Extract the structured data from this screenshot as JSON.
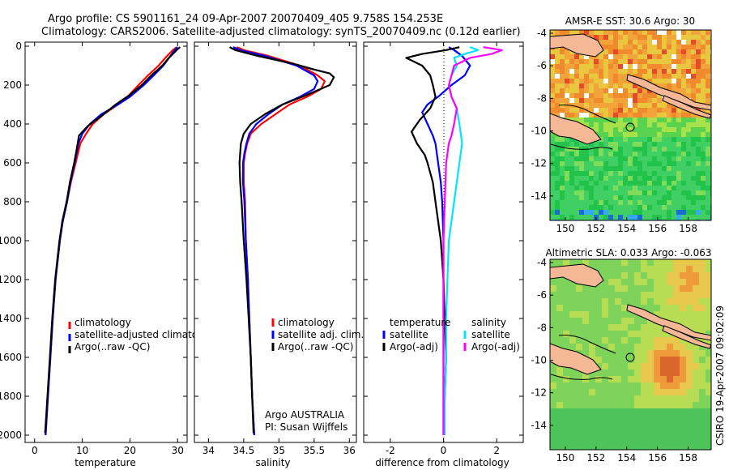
{
  "header": {
    "line1": "Argo profile: CS 5901161_24 09-Apr-2007 20070409_405 9.758S 154.253E",
    "line2": "Climatology: CARS2006. Satellite-adjusted climatology: synTS_20070409.nc (0.12d earlier)"
  },
  "footer": {
    "institute": "Argo AUSTRALIA",
    "pi": "PI: Susan Wijffels",
    "stamp": "CSIRO 19-Apr-2007 09:02:09"
  },
  "colors": {
    "climatology": "#ff0000",
    "satellite": "#0000ff",
    "argo": "#000000",
    "satellite_salinity": "#00e5ff",
    "argo_salinity": "#ff00ff",
    "land": "#f4b896"
  },
  "chart_data": [
    {
      "type": "line",
      "xlabel": "temperature",
      "ylabel": "",
      "xlim": [
        -2,
        32
      ],
      "ylim": [
        2000,
        0
      ],
      "x_ticks": [
        0,
        10,
        20,
        30
      ],
      "y_ticks": [
        0,
        200,
        400,
        600,
        800,
        1000,
        1200,
        1400,
        1600,
        1800,
        2000
      ],
      "legend": [
        "climatology",
        "satellite-adjusted climatology",
        "Argo(..raw -QC)"
      ],
      "series": [
        {
          "name": "climatology",
          "color": "#ff0000",
          "points": [
            [
              29.8,
              5
            ],
            [
              29.0,
              20
            ],
            [
              27.8,
              50
            ],
            [
              26.0,
              100
            ],
            [
              23.8,
              150
            ],
            [
              21.8,
              200
            ],
            [
              19.5,
              260
            ],
            [
              17.5,
              300
            ],
            [
              14.5,
              350
            ],
            [
              12.2,
              400
            ],
            [
              10.8,
              450
            ],
            [
              9.6,
              500
            ],
            [
              8.6,
              600
            ],
            [
              7.6,
              700
            ],
            [
              6.8,
              800
            ],
            [
              5.9,
              900
            ],
            [
              5.3,
              1000
            ],
            [
              4.4,
              1200
            ],
            [
              3.8,
              1400
            ],
            [
              3.3,
              1600
            ],
            [
              2.8,
              1800
            ],
            [
              2.3,
              2000
            ]
          ]
        },
        {
          "name": "satellite-adjusted climatology",
          "color": "#0000ff",
          "points": [
            [
              30.0,
              5
            ],
            [
              29.4,
              20
            ],
            [
              28.5,
              50
            ],
            [
              27.0,
              100
            ],
            [
              25.0,
              150
            ],
            [
              22.9,
              200
            ],
            [
              20.0,
              260
            ],
            [
              17.5,
              300
            ],
            [
              14.0,
              350
            ],
            [
              11.6,
              400
            ],
            [
              10.0,
              450
            ],
            [
              9.2,
              500
            ],
            [
              8.4,
              600
            ],
            [
              7.5,
              700
            ],
            [
              6.8,
              800
            ],
            [
              5.9,
              900
            ],
            [
              5.3,
              1000
            ],
            [
              4.4,
              1200
            ],
            [
              3.8,
              1400
            ],
            [
              3.3,
              1600
            ],
            [
              2.8,
              1800
            ],
            [
              2.3,
              2000
            ]
          ]
        },
        {
          "name": "Argo(..raw -QC)",
          "color": "#000000",
          "points": [
            [
              30.5,
              5
            ],
            [
              29.8,
              20
            ],
            [
              28.2,
              60
            ],
            [
              26.8,
              100
            ],
            [
              24.5,
              150
            ],
            [
              22.5,
              200
            ],
            [
              20.0,
              250
            ],
            [
              17.0,
              300
            ],
            [
              14.5,
              350
            ],
            [
              11.2,
              410
            ],
            [
              9.3,
              460
            ],
            [
              8.9,
              520
            ],
            [
              8.3,
              600
            ],
            [
              7.4,
              700
            ],
            [
              6.7,
              800
            ],
            [
              5.8,
              900
            ],
            [
              5.2,
              1000
            ],
            [
              4.3,
              1200
            ],
            [
              3.7,
              1400
            ],
            [
              3.2,
              1600
            ],
            [
              2.7,
              1800
            ],
            [
              2.2,
              1990
            ]
          ]
        }
      ]
    },
    {
      "type": "line",
      "xlabel": "salinity",
      "ylabel": "",
      "xlim": [
        33.8,
        36.1
      ],
      "ylim": [
        2000,
        0
      ],
      "x_ticks": [
        34,
        34.5,
        35,
        35.5,
        36
      ],
      "legend": [
        "climatology",
        "satellite adj. clim.",
        "Argo(..raw -QC)"
      ],
      "series": [
        {
          "name": "climatology",
          "color": "#ff0000",
          "points": [
            [
              34.4,
              5
            ],
            [
              34.5,
              20
            ],
            [
              34.85,
              50
            ],
            [
              35.3,
              100
            ],
            [
              35.55,
              150
            ],
            [
              35.65,
              180
            ],
            [
              35.6,
              220
            ],
            [
              35.4,
              260
            ],
            [
              35.15,
              300
            ],
            [
              34.95,
              350
            ],
            [
              34.75,
              400
            ],
            [
              34.6,
              450
            ],
            [
              34.55,
              500
            ],
            [
              34.52,
              550
            ],
            [
              34.5,
              600
            ],
            [
              34.5,
              700
            ],
            [
              34.52,
              800
            ],
            [
              34.53,
              1000
            ],
            [
              34.56,
              1200
            ],
            [
              34.58,
              1400
            ],
            [
              34.6,
              1600
            ],
            [
              34.62,
              1800
            ],
            [
              34.65,
              2000
            ]
          ]
        },
        {
          "name": "satellite adj. clim.",
          "color": "#0000ff",
          "points": [
            [
              34.35,
              5
            ],
            [
              34.45,
              20
            ],
            [
              34.8,
              50
            ],
            [
              35.25,
              100
            ],
            [
              35.5,
              150
            ],
            [
              35.55,
              180
            ],
            [
              35.5,
              220
            ],
            [
              35.3,
              260
            ],
            [
              35.05,
              300
            ],
            [
              34.85,
              350
            ],
            [
              34.68,
              400
            ],
            [
              34.58,
              450
            ],
            [
              34.54,
              500
            ],
            [
              34.51,
              550
            ],
            [
              34.49,
              600
            ],
            [
              34.49,
              700
            ],
            [
              34.51,
              800
            ],
            [
              34.53,
              1000
            ],
            [
              34.56,
              1200
            ],
            [
              34.58,
              1400
            ],
            [
              34.6,
              1600
            ],
            [
              34.62,
              1800
            ],
            [
              34.65,
              2000
            ]
          ]
        },
        {
          "name": "Argo(..raw -QC)",
          "color": "#000000",
          "points": [
            [
              34.3,
              5
            ],
            [
              34.38,
              20
            ],
            [
              34.7,
              50
            ],
            [
              35.2,
              90
            ],
            [
              35.5,
              120
            ],
            [
              35.72,
              140
            ],
            [
              35.78,
              160
            ],
            [
              35.72,
              200
            ],
            [
              35.4,
              250
            ],
            [
              35.05,
              300
            ],
            [
              34.8,
              350
            ],
            [
              34.6,
              400
            ],
            [
              34.5,
              450
            ],
            [
              34.46,
              500
            ],
            [
              34.45,
              550
            ],
            [
              34.44,
              600
            ],
            [
              34.45,
              700
            ],
            [
              34.47,
              800
            ],
            [
              34.5,
              1000
            ],
            [
              34.54,
              1200
            ],
            [
              34.57,
              1400
            ],
            [
              34.6,
              1600
            ],
            [
              34.62,
              1800
            ],
            [
              34.64,
              1990
            ]
          ]
        }
      ]
    },
    {
      "type": "line",
      "xlabel": "difference from climatology",
      "ylabel": "",
      "xlim": [
        -3,
        3
      ],
      "ylim": [
        2000,
        0
      ],
      "x_ticks": [
        -2,
        0,
        2
      ],
      "legend": [
        "temperature",
        "satellite",
        "Argo(-adj)",
        "salinity",
        "satellite",
        "Argo(-adj)"
      ],
      "series": [
        {
          "name": "temperature satellite",
          "color": "#0000ff",
          "points": [
            [
              0.2,
              5
            ],
            [
              0.4,
              20
            ],
            [
              0.7,
              50
            ],
            [
              1.0,
              100
            ],
            [
              0.8,
              150
            ],
            [
              0.3,
              200
            ],
            [
              -0.2,
              260
            ],
            [
              -0.6,
              300
            ],
            [
              -0.8,
              340
            ],
            [
              -0.6,
              400
            ],
            [
              -0.4,
              460
            ],
            [
              -0.3,
              500
            ],
            [
              -0.2,
              600
            ],
            [
              -0.1,
              700
            ],
            [
              -0.05,
              800
            ],
            [
              0,
              1000
            ],
            [
              0,
              1200
            ],
            [
              0,
              1400
            ],
            [
              0,
              1600
            ],
            [
              0,
              1800
            ],
            [
              0,
              2000
            ]
          ]
        },
        {
          "name": "temperature Argo(-adj)",
          "color": "#000000",
          "points": [
            [
              0.6,
              5
            ],
            [
              0.1,
              20
            ],
            [
              -0.8,
              40
            ],
            [
              -1.4,
              60
            ],
            [
              -0.8,
              100
            ],
            [
              -0.5,
              150
            ],
            [
              -0.4,
              200
            ],
            [
              -0.3,
              260
            ],
            [
              -0.5,
              320
            ],
            [
              -0.9,
              380
            ],
            [
              -1.2,
              440
            ],
            [
              -1.0,
              500
            ],
            [
              -0.7,
              560
            ],
            [
              -0.6,
              600
            ],
            [
              -0.4,
              700
            ],
            [
              -0.3,
              800
            ],
            [
              -0.2,
              900
            ],
            [
              -0.1,
              1000
            ],
            [
              0,
              1200
            ],
            [
              0.05,
              1400
            ],
            [
              0.1,
              1600
            ],
            [
              0.05,
              1800
            ],
            [
              0,
              1990
            ]
          ]
        },
        {
          "name": "salinity satellite",
          "color": "#00e5ff",
          "points": [
            [
              1.0,
              5
            ],
            [
              1.3,
              20
            ],
            [
              0.8,
              40
            ],
            [
              0.4,
              60
            ],
            [
              0.5,
              100
            ],
            [
              0.3,
              150
            ],
            [
              0.2,
              200
            ],
            [
              0.3,
              260
            ],
            [
              0.5,
              320
            ],
            [
              0.6,
              400
            ],
            [
              0.7,
              500
            ],
            [
              0.6,
              600
            ],
            [
              0.5,
              700
            ],
            [
              0.4,
              800
            ],
            [
              0.3,
              900
            ],
            [
              0.2,
              1000
            ],
            [
              0.15,
              1200
            ],
            [
              0.1,
              1400
            ],
            [
              0.1,
              1600
            ],
            [
              0.05,
              1800
            ],
            [
              0.05,
              2000
            ]
          ]
        },
        {
          "name": "salinity Argo(-adj)",
          "color": "#ff00ff",
          "points": [
            [
              1.5,
              5
            ],
            [
              2.2,
              20
            ],
            [
              1.8,
              40
            ],
            [
              1.0,
              60
            ],
            [
              0.4,
              100
            ],
            [
              0.3,
              150
            ],
            [
              0.2,
              200
            ],
            [
              0.3,
              260
            ],
            [
              0.5,
              320
            ],
            [
              0.4,
              400
            ],
            [
              0.3,
              460
            ],
            [
              0.2,
              500
            ],
            [
              0.1,
              600
            ],
            [
              0.05,
              800
            ],
            [
              0,
              1000
            ],
            [
              0,
              1200
            ],
            [
              0,
              1400
            ],
            [
              0,
              1600
            ],
            [
              0,
              1800
            ],
            [
              0,
              2000
            ]
          ]
        }
      ]
    },
    {
      "type": "heatmap",
      "title": "AMSR-E SST: 30.6 Argo: 30",
      "xlim": [
        149,
        159.5
      ],
      "ylim": [
        -15.5,
        -3.8
      ],
      "x_ticks": [
        150,
        152,
        154,
        156,
        158
      ],
      "y_ticks": [
        -4,
        -6,
        -8,
        -10,
        -12,
        -14
      ],
      "marker": {
        "lon": 154.253,
        "lat": -9.758
      }
    },
    {
      "type": "heatmap",
      "title": "Altimetric SLA: 0.033 Argo: -0.063",
      "xlim": [
        149,
        159.5
      ],
      "ylim": [
        -15.5,
        -3.8
      ],
      "x_ticks": [
        150,
        152,
        154,
        156,
        158
      ],
      "y_ticks": [
        -4,
        -6,
        -8,
        -10,
        -12,
        -14
      ],
      "marker": {
        "lon": 154.253,
        "lat": -9.758
      }
    }
  ]
}
